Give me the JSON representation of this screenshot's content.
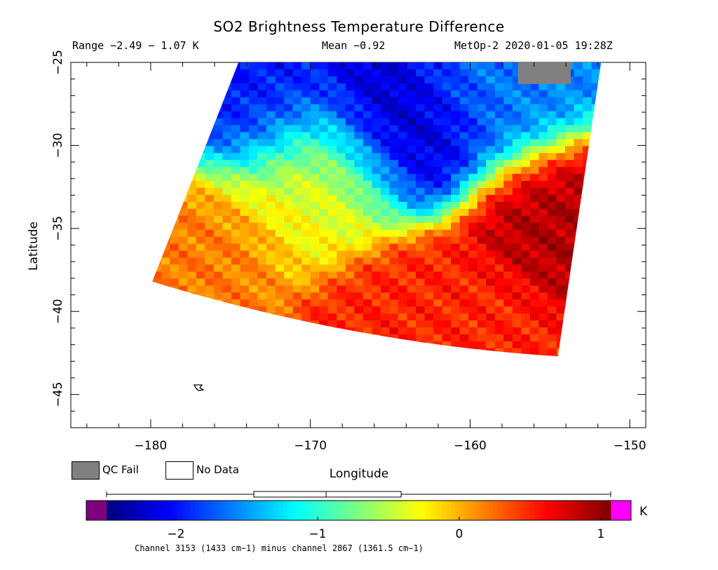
{
  "header": {
    "title": "SO2 Brightness Temperature Difference",
    "range_text": "Range −2.49 − 1.07 K",
    "mean_text": "Mean −0.92",
    "satellite_time": "MetOp-2 2020-01-05 19:28Z"
  },
  "legend": {
    "qc_fail_label": "QC Fail",
    "no_data_label": "No Data",
    "qc_fail_color": "#808080",
    "no_data_color": "#ffffff"
  },
  "colorbar": {
    "unit": "K",
    "ticks": [
      -2,
      -1,
      0,
      1
    ],
    "tick_labels": [
      "−2",
      "−1",
      "0",
      "1"
    ],
    "min": -2.49,
    "max": 1.07,
    "low_out_color": "#7f007f",
    "high_out_color": "#ff00ff",
    "colors": [
      "#00007f",
      "#0000ff",
      "#007fff",
      "#00ffff",
      "#7fff7f",
      "#ffff00",
      "#ff7f00",
      "#ff0000",
      "#7f0000"
    ],
    "boxplot": {
      "whisker_low": -2.49,
      "q1": -1.45,
      "median": -0.94,
      "q3": -0.41,
      "whisker_high": 1.07
    }
  },
  "footnote": "Channel 3153 (1433 cm−1) minus channel 2867 (1361.5 cm−1)",
  "chart_data": {
    "type": "heatmap",
    "title": "SO2 Brightness Temperature Difference",
    "xlabel": "Longitude",
    "ylabel": "Latitude",
    "xlim": [
      -185,
      -149
    ],
    "ylim": [
      -47,
      -25
    ],
    "x_ticks": [
      -180,
      -170,
      -160,
      -150
    ],
    "x_tick_labels": [
      "−180",
      "−170",
      "−160",
      "−150"
    ],
    "y_ticks": [
      -25,
      -30,
      -35,
      -40,
      -45
    ],
    "y_tick_labels": [
      "−25",
      "−30",
      "−35",
      "−40",
      "−45"
    ],
    "value_range": [
      -2.49,
      1.07
    ],
    "mean": -0.92,
    "units": "K",
    "swath_corners": {
      "top_left": [
        -174.5,
        -25
      ],
      "top_right": [
        -151.8,
        -25
      ],
      "bottom_right": [
        -154.5,
        -42.7
      ],
      "bottom_left": [
        -179.9,
        -38.2
      ]
    },
    "qc_fail_region": {
      "lon": [
        -157,
        -153.7
      ],
      "lat": [
        -25,
        -26.3
      ]
    },
    "features": [
      {
        "name": "min-cluster",
        "lon": -164,
        "lat": -29,
        "value": -2.3
      },
      {
        "name": "mid-blue",
        "lon": -158,
        "lat": -27,
        "value": -1.6
      },
      {
        "name": "west-band-warm",
        "lon": -178,
        "lat": -35,
        "value": 0.2
      },
      {
        "name": "south-warm",
        "lon": -162,
        "lat": -40.2,
        "value": 0.5
      },
      {
        "name": "east-hot",
        "lon": -154,
        "lat": -34,
        "value": 0.9
      },
      {
        "name": "northwest-cold",
        "lon": -174,
        "lat": -28,
        "value": -2.0
      },
      {
        "name": "center-yellow",
        "lon": -170,
        "lat": -32,
        "value": -0.3
      }
    ]
  }
}
